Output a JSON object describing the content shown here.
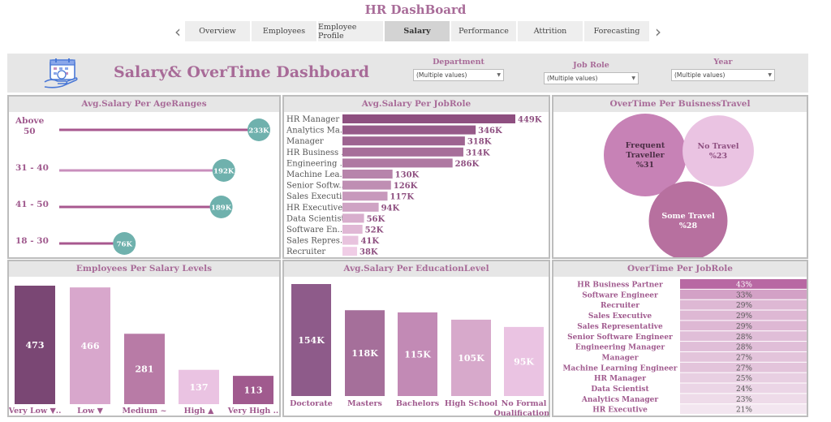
{
  "app_title": "HR DashBoard",
  "nav": {
    "prev": "‹",
    "next": "›",
    "tabs": [
      {
        "label": "Overview",
        "active": false
      },
      {
        "label": "Employees",
        "active": false
      },
      {
        "label": "Employee Profile",
        "active": false
      },
      {
        "label": "Salary",
        "active": true
      },
      {
        "label": "Performance",
        "active": false
      },
      {
        "label": "Attrition",
        "active": false
      },
      {
        "label": "Forecasting",
        "active": false
      }
    ]
  },
  "header": {
    "title": "Salary& OverTime Dashboard",
    "logo_icon": "calendar-hand-money-icon",
    "filters": [
      {
        "label": "Department",
        "value": "(Multiple values)"
      },
      {
        "label": "Job Role",
        "value": "(Multiple values)"
      },
      {
        "label": "Year",
        "value": "(Multiple values)"
      }
    ]
  },
  "colors": {
    "title": "#a86b98",
    "teal": "#6fb1ad",
    "lollipop": "#a8588f",
    "lollipop_light": "#c98fbc",
    "panel_header": "#e6e6e6"
  },
  "chart_data": [
    {
      "id": "age",
      "type": "lollipop",
      "title": "Avg.Salary Per AgeRanges",
      "categories": [
        [
          "Above",
          "50"
        ],
        [
          "31 - 40"
        ],
        [
          "41 - 50"
        ],
        [
          "18 - 30"
        ]
      ],
      "values": [
        233,
        192,
        189,
        76
      ],
      "labels": [
        "233K",
        "192K",
        "189K",
        "76K"
      ],
      "xlim": [
        0,
        233
      ]
    },
    {
      "id": "job",
      "type": "bar",
      "orientation": "horizontal",
      "title": "Avg.Salary Per JobRole",
      "categories": [
        "HR Manager",
        "Analytics Ma..",
        "Manager",
        "HR Business ..",
        "Engineering ..",
        "Machine Lea..",
        "Senior Softw..",
        "Sales Executi..",
        "HR Executive",
        "Data Scientist",
        "Software En..",
        "Sales Repres..",
        "Recruiter"
      ],
      "values": [
        449,
        346,
        318,
        314,
        286,
        130,
        126,
        117,
        94,
        56,
        52,
        41,
        38
      ],
      "labels": [
        "449K",
        "346K",
        "318K",
        "314K",
        "286K",
        "130K",
        "126K",
        "117K",
        "94K",
        "56K",
        "52K",
        "41K",
        "38K"
      ],
      "xlim": [
        0,
        449
      ]
    },
    {
      "id": "travel",
      "type": "bubble",
      "title": "OverTime  Per BuisnessTravel",
      "categories": [
        [
          "Frequent",
          "Traveller",
          "%31"
        ],
        [
          "No Travel",
          "%23"
        ],
        [
          "Some Travel",
          "%28"
        ]
      ],
      "values": [
        31,
        23,
        28
      ]
    },
    {
      "id": "level",
      "type": "bar",
      "title": "Employees Per Salary Levels",
      "categories": [
        "Very Low ▼..",
        "Low ▼",
        "Medium ~",
        "High ▲",
        "Very High .."
      ],
      "values": [
        473,
        466,
        281,
        137,
        113
      ],
      "labels": [
        "473",
        "466",
        "281",
        "137",
        "113"
      ],
      "ylim": [
        0,
        473
      ]
    },
    {
      "id": "edu",
      "type": "bar",
      "title": "Avg.Salary Per EducationLevel",
      "categories": [
        [
          "Doctorate"
        ],
        [
          "Masters"
        ],
        [
          "Bachelors"
        ],
        [
          "High School"
        ],
        [
          "No Formal",
          "Qualifications"
        ]
      ],
      "values": [
        154,
        118,
        115,
        105,
        95
      ],
      "labels": [
        "154K",
        "118K",
        "115K",
        "105K",
        "95K"
      ],
      "ylim": [
        0,
        154
      ]
    },
    {
      "id": "ot",
      "type": "table",
      "title": "OverTime Per JobRole",
      "categories": [
        "HR Business Partner",
        "Software Engineer",
        "Recruiter",
        "Sales Executive",
        "Sales Representative",
        "Senior Software Engineer",
        "Engineering Manager",
        "Manager",
        "Machine Learning Engineer",
        "HR Manager",
        "Data Scientist",
        "Analytics Manager",
        "HR Executive"
      ],
      "values": [
        43,
        33,
        29,
        29,
        29,
        28,
        28,
        27,
        27,
        25,
        24,
        23,
        21
      ],
      "labels": [
        "43%",
        "33%",
        "29%",
        "29%",
        "29%",
        "28%",
        "28%",
        "27%",
        "27%",
        "25%",
        "24%",
        "23%",
        "21%"
      ]
    }
  ]
}
